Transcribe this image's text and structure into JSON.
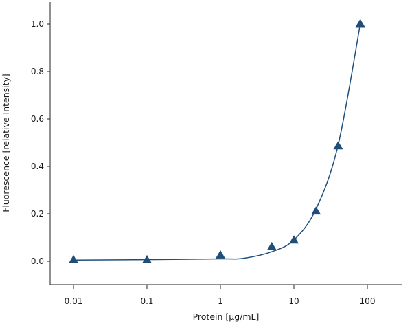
{
  "chart_data": {
    "type": "scatter",
    "title": "",
    "xlabel": "Protein [µg/mL]",
    "ylabel": "Fluorescence [relative Intensity]",
    "x_scale": "log",
    "xlim": [
      0.006,
      180
    ],
    "ylim": [
      -0.1,
      1.1
    ],
    "x_ticks": [
      0.01,
      0.1,
      1,
      10,
      100
    ],
    "x_tick_labels": [
      "0.01",
      "0.1",
      "1",
      "10",
      "100"
    ],
    "y_ticks": [
      0.0,
      0.2,
      0.4,
      0.6,
      0.8,
      1.0
    ],
    "y_tick_labels": [
      "0.0",
      "0.2",
      "0.4",
      "0.6",
      "0.8",
      "1.0"
    ],
    "grid": false,
    "legend": "none",
    "marker": "triangle",
    "color": "#1f4e79",
    "series": [
      {
        "x": [
          0.01,
          0.1,
          1,
          5,
          10,
          20,
          40,
          80
        ],
        "y": [
          0.005,
          0.005,
          0.025,
          0.06,
          0.088,
          0.21,
          0.485,
          1.0
        ]
      }
    ],
    "fit_curve": {
      "x": [
        0.01,
        0.1,
        1,
        2,
        5,
        10,
        20,
        40,
        80
      ],
      "y": [
        0.005,
        0.007,
        0.01,
        0.012,
        0.04,
        0.09,
        0.22,
        0.49,
        1.0
      ]
    }
  }
}
